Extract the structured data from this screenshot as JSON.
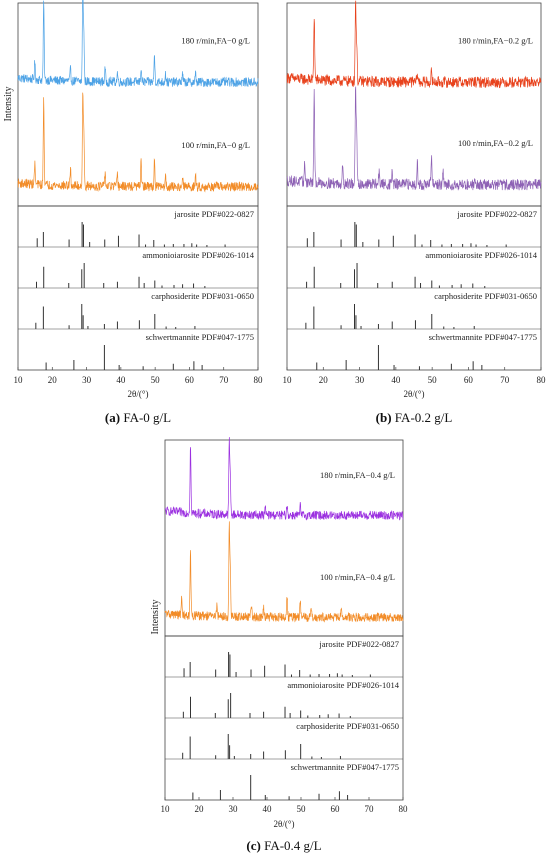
{
  "chart_data": [
    {
      "type": "line",
      "caption_letter": "(a)",
      "caption_text": "FA-0 g/L",
      "ylabel": "Intensity",
      "xlabel": "2θ/(°)",
      "xlim": [
        10,
        80
      ],
      "xticks": [
        10,
        20,
        30,
        40,
        50,
        60,
        70,
        80
      ],
      "series": [
        {
          "label": "180 r/min,FA−0 g/L",
          "color": "#4ea3e6",
          "baseline": 0.19,
          "noise": 0.05,
          "peaks": [
            [
              14.9,
              0.18
            ],
            [
              17.5,
              0.85
            ],
            [
              25.3,
              0.12
            ],
            [
              28.9,
              1.0
            ],
            [
              29.2,
              0.5
            ],
            [
              35.4,
              0.14
            ],
            [
              39.0,
              0.1
            ],
            [
              45.9,
              0.16
            ],
            [
              49.8,
              0.3
            ],
            [
              53.0,
              0.1
            ],
            [
              58.0,
              0.08
            ],
            [
              61.8,
              0.09
            ]
          ]
        },
        {
          "label": "100 r/min,FA−0 g/L",
          "color": "#f28c28",
          "baseline": 0.16,
          "noise": 0.05,
          "peaks": [
            [
              14.9,
              0.22
            ],
            [
              17.5,
              0.95
            ],
            [
              25.3,
              0.18
            ],
            [
              28.9,
              1.0
            ],
            [
              29.2,
              0.55
            ],
            [
              35.4,
              0.15
            ],
            [
              39.0,
              0.12
            ],
            [
              45.9,
              0.3
            ],
            [
              49.8,
              0.28
            ],
            [
              53.0,
              0.12
            ],
            [
              58.0,
              0.08
            ],
            [
              61.8,
              0.1
            ]
          ]
        }
      ],
      "references": [
        {
          "label": "jarosite PDF#022-0827",
          "peaks": [
            [
              15.6,
              0.35
            ],
            [
              17.4,
              0.6
            ],
            [
              24.9,
              0.3
            ],
            [
              28.7,
              1.0
            ],
            [
              29.1,
              0.9
            ],
            [
              30.9,
              0.2
            ],
            [
              35.3,
              0.3
            ],
            [
              39.3,
              0.45
            ],
            [
              45.3,
              0.5
            ],
            [
              47.2,
              0.1
            ],
            [
              49.6,
              0.28
            ],
            [
              52.7,
              0.1
            ],
            [
              55.3,
              0.12
            ],
            [
              58.4,
              0.12
            ],
            [
              60.7,
              0.15
            ],
            [
              62.1,
              0.1
            ],
            [
              65.1,
              0.08
            ],
            [
              70.4,
              0.1
            ]
          ]
        },
        {
          "label": "ammonioiarosite PDF#026-1014",
          "peaks": [
            [
              15.4,
              0.25
            ],
            [
              17.5,
              0.85
            ],
            [
              24.8,
              0.2
            ],
            [
              28.6,
              0.75
            ],
            [
              29.3,
              1.0
            ],
            [
              35.0,
              0.2
            ],
            [
              39.0,
              0.25
            ],
            [
              45.3,
              0.45
            ],
            [
              46.8,
              0.2
            ],
            [
              49.9,
              0.3
            ],
            [
              52.0,
              0.1
            ],
            [
              55.5,
              0.12
            ],
            [
              58.0,
              0.15
            ],
            [
              61.2,
              0.18
            ],
            [
              64.5,
              0.08
            ]
          ]
        },
        {
          "label": "carphosiderite PDF#031-0650",
          "peaks": [
            [
              15.2,
              0.25
            ],
            [
              17.4,
              0.9
            ],
            [
              24.9,
              0.15
            ],
            [
              28.6,
              1.0
            ],
            [
              29.0,
              0.55
            ],
            [
              30.4,
              0.12
            ],
            [
              35.2,
              0.2
            ],
            [
              39.0,
              0.3
            ],
            [
              45.4,
              0.35
            ],
            [
              49.9,
              0.6
            ],
            [
              53.2,
              0.1
            ],
            [
              56.0,
              0.08
            ],
            [
              61.6,
              0.12
            ]
          ]
        },
        {
          "label": "schwertmannite PDF#047-1775",
          "peaks": [
            [
              18.2,
              0.3
            ],
            [
              26.3,
              0.4
            ],
            [
              35.2,
              1.0
            ],
            [
              39.5,
              0.2
            ],
            [
              46.5,
              0.15
            ],
            [
              55.3,
              0.25
            ],
            [
              61.3,
              0.35
            ],
            [
              63.7,
              0.2
            ]
          ]
        }
      ]
    },
    {
      "type": "line",
      "caption_letter": "(b)",
      "caption_text": "FA-0.2 g/L",
      "ylabel": "",
      "xlabel": "2θ/(°)",
      "xlim": [
        10,
        80
      ],
      "xticks": [
        10,
        20,
        30,
        40,
        50,
        60,
        70,
        80
      ],
      "series": [
        {
          "label": "180 r/min,FA−0.2 g/L",
          "color": "#e8421c",
          "baseline": 0.19,
          "noise": 0.06,
          "peaks": [
            [
              17.5,
              0.7
            ],
            [
              28.9,
              0.85
            ],
            [
              29.2,
              0.4
            ],
            [
              45.9,
              0.1
            ],
            [
              49.8,
              0.1
            ]
          ]
        },
        {
          "label": "100 r/min,FA−0.2 g/L",
          "color": "#8e62b5",
          "baseline": 0.18,
          "noise": 0.06,
          "peaks": [
            [
              14.9,
              0.2
            ],
            [
              17.5,
              0.95
            ],
            [
              25.3,
              0.18
            ],
            [
              28.9,
              1.0
            ],
            [
              29.2,
              0.5
            ],
            [
              35.4,
              0.15
            ],
            [
              39.0,
              0.15
            ],
            [
              45.9,
              0.25
            ],
            [
              49.8,
              0.3
            ],
            [
              53.0,
              0.12
            ],
            [
              61.8,
              0.1
            ]
          ]
        }
      ],
      "references": [
        {
          "label": "jarosite PDF#022-0827",
          "peaks": [
            [
              15.6,
              0.35
            ],
            [
              17.4,
              0.6
            ],
            [
              24.9,
              0.3
            ],
            [
              28.7,
              1.0
            ],
            [
              29.1,
              0.9
            ],
            [
              30.9,
              0.2
            ],
            [
              35.3,
              0.3
            ],
            [
              39.3,
              0.45
            ],
            [
              45.3,
              0.5
            ],
            [
              47.2,
              0.1
            ],
            [
              49.6,
              0.28
            ],
            [
              52.7,
              0.1
            ],
            [
              55.3,
              0.12
            ],
            [
              58.4,
              0.12
            ],
            [
              60.7,
              0.15
            ],
            [
              62.1,
              0.1
            ],
            [
              65.1,
              0.08
            ],
            [
              70.4,
              0.1
            ]
          ]
        },
        {
          "label": "ammonioiarosite PDF#026-1014",
          "peaks": [
            [
              15.4,
              0.25
            ],
            [
              17.5,
              0.85
            ],
            [
              24.8,
              0.2
            ],
            [
              28.6,
              0.75
            ],
            [
              29.3,
              1.0
            ],
            [
              35.0,
              0.2
            ],
            [
              39.0,
              0.25
            ],
            [
              45.3,
              0.45
            ],
            [
              46.8,
              0.2
            ],
            [
              49.9,
              0.3
            ],
            [
              52.0,
              0.1
            ],
            [
              55.5,
              0.12
            ],
            [
              58.0,
              0.15
            ],
            [
              61.2,
              0.18
            ],
            [
              64.5,
              0.08
            ]
          ]
        },
        {
          "label": "carphosiderite PDF#031-0650",
          "peaks": [
            [
              15.2,
              0.25
            ],
            [
              17.4,
              0.9
            ],
            [
              24.9,
              0.15
            ],
            [
              28.6,
              1.0
            ],
            [
              29.0,
              0.55
            ],
            [
              30.4,
              0.12
            ],
            [
              35.2,
              0.2
            ],
            [
              39.0,
              0.3
            ],
            [
              45.4,
              0.35
            ],
            [
              49.9,
              0.6
            ],
            [
              53.2,
              0.1
            ],
            [
              56.0,
              0.08
            ],
            [
              61.6,
              0.12
            ]
          ]
        },
        {
          "label": "schwertmannite PDF#047-1775",
          "peaks": [
            [
              18.2,
              0.3
            ],
            [
              26.3,
              0.4
            ],
            [
              35.2,
              1.0
            ],
            [
              39.5,
              0.2
            ],
            [
              46.5,
              0.15
            ],
            [
              55.3,
              0.25
            ],
            [
              61.3,
              0.35
            ],
            [
              63.7,
              0.2
            ]
          ]
        }
      ]
    },
    {
      "type": "line",
      "caption_letter": "(c)",
      "caption_text": "FA-0.4 g/L",
      "ylabel": "Intensity",
      "xlabel": "2θ/(°)",
      "xlim": [
        10,
        80
      ],
      "xticks": [
        10,
        20,
        30,
        40,
        50,
        60,
        70,
        80
      ],
      "series": [
        {
          "label": "180 r/min,FA−0.4 g/L",
          "color": "#9b30e0",
          "baseline": 0.2,
          "noise": 0.05,
          "peaks": [
            [
              17.5,
              0.8
            ],
            [
              28.9,
              0.85
            ],
            [
              29.2,
              0.4
            ],
            [
              39.5,
              0.08
            ],
            [
              45.9,
              0.12
            ],
            [
              49.8,
              0.1
            ]
          ]
        },
        {
          "label": "100 r/min,FA−0.4 g/L",
          "color": "#f28c28",
          "baseline": 0.16,
          "noise": 0.05,
          "peaks": [
            [
              14.9,
              0.18
            ],
            [
              17.5,
              0.7
            ],
            [
              25.3,
              0.15
            ],
            [
              28.9,
              1.0
            ],
            [
              29.2,
              0.5
            ],
            [
              35.4,
              0.12
            ],
            [
              39.0,
              0.1
            ],
            [
              45.9,
              0.25
            ],
            [
              49.8,
              0.18
            ],
            [
              53.0,
              0.1
            ],
            [
              61.8,
              0.08
            ]
          ]
        }
      ],
      "references": [
        {
          "label": "jarosite PDF#022-0827",
          "peaks": [
            [
              15.6,
              0.35
            ],
            [
              17.4,
              0.6
            ],
            [
              24.9,
              0.3
            ],
            [
              28.7,
              1.0
            ],
            [
              29.1,
              0.9
            ],
            [
              30.9,
              0.2
            ],
            [
              35.3,
              0.3
            ],
            [
              39.3,
              0.45
            ],
            [
              45.3,
              0.5
            ],
            [
              47.2,
              0.1
            ],
            [
              49.6,
              0.28
            ],
            [
              52.7,
              0.1
            ],
            [
              55.3,
              0.12
            ],
            [
              58.4,
              0.12
            ],
            [
              60.7,
              0.15
            ],
            [
              62.1,
              0.1
            ],
            [
              65.1,
              0.08
            ],
            [
              70.4,
              0.1
            ]
          ]
        },
        {
          "label": "ammonioiarosite PDF#026-1014",
          "peaks": [
            [
              15.4,
              0.25
            ],
            [
              17.5,
              0.85
            ],
            [
              24.8,
              0.2
            ],
            [
              28.6,
              0.75
            ],
            [
              29.3,
              1.0
            ],
            [
              35.0,
              0.2
            ],
            [
              39.0,
              0.25
            ],
            [
              45.3,
              0.45
            ],
            [
              46.8,
              0.2
            ],
            [
              49.9,
              0.3
            ],
            [
              52.0,
              0.1
            ],
            [
              55.5,
              0.12
            ],
            [
              58.0,
              0.15
            ],
            [
              61.2,
              0.18
            ],
            [
              64.5,
              0.08
            ]
          ]
        },
        {
          "label": "carphosiderite PDF#031-0650",
          "peaks": [
            [
              15.2,
              0.25
            ],
            [
              17.4,
              0.9
            ],
            [
              24.9,
              0.15
            ],
            [
              28.6,
              1.0
            ],
            [
              29.0,
              0.55
            ],
            [
              30.4,
              0.12
            ],
            [
              35.2,
              0.2
            ],
            [
              39.0,
              0.3
            ],
            [
              45.4,
              0.35
            ],
            [
              49.9,
              0.6
            ],
            [
              53.2,
              0.1
            ],
            [
              56.0,
              0.08
            ],
            [
              61.6,
              0.12
            ]
          ]
        },
        {
          "label": "schwertmannite PDF#047-1775",
          "peaks": [
            [
              18.2,
              0.3
            ],
            [
              26.3,
              0.4
            ],
            [
              35.2,
              1.0
            ],
            [
              39.5,
              0.2
            ],
            [
              46.5,
              0.15
            ],
            [
              55.3,
              0.25
            ],
            [
              61.3,
              0.35
            ],
            [
              63.7,
              0.2
            ]
          ]
        }
      ]
    }
  ]
}
